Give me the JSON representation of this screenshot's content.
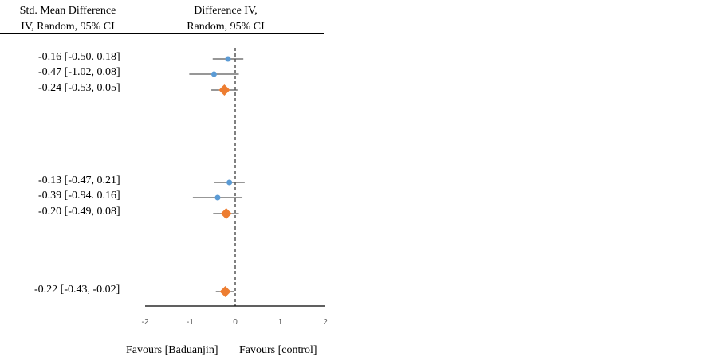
{
  "headers": {
    "left_line1": "Std. Mean Difference",
    "left_line2": "IV, Random, 95% CI",
    "right_line1": "Difference IV,",
    "right_line2": "Random, 95% CI"
  },
  "footer": {
    "favours_left": "Favours [Baduanjin]",
    "favours_right": "Favours [control]"
  },
  "colors": {
    "study_point": "#5b9bd5",
    "summary_diamond": "#ed7d31",
    "whisker": "#595959",
    "axis": "#000000"
  },
  "chart_data": {
    "type": "forest",
    "xlim": [
      -2,
      2
    ],
    "x_ticks": [
      "-2",
      "-1",
      "0",
      "1",
      "2"
    ],
    "x_tick_values": [
      -2,
      -1,
      0,
      1,
      2
    ],
    "reference_line": 0,
    "rows": [
      {
        "label": "-0.16 [-0.50. 0.18]",
        "est": -0.16,
        "lo": -0.5,
        "hi": 0.18,
        "kind": "study"
      },
      {
        "label": "-0.47 [-1.02, 0.08]",
        "est": -0.47,
        "lo": -1.02,
        "hi": 0.08,
        "kind": "study"
      },
      {
        "label": "-0.24 [-0.53, 0.05]",
        "est": -0.24,
        "lo": -0.53,
        "hi": 0.05,
        "kind": "summary"
      },
      {
        "label": "-0.13 [-0.47, 0.21]",
        "est": -0.13,
        "lo": -0.47,
        "hi": 0.21,
        "kind": "study"
      },
      {
        "label": "-0.39 [-0.94. 0.16]",
        "est": -0.39,
        "lo": -0.94,
        "hi": 0.16,
        "kind": "study"
      },
      {
        "label": "-0.20 [-0.49, 0.08]",
        "est": -0.2,
        "lo": -0.49,
        "hi": 0.08,
        "kind": "summary"
      },
      {
        "label": "-0.22 [-0.43, -0.02]",
        "est": -0.22,
        "lo": -0.43,
        "hi": -0.02,
        "kind": "summary"
      }
    ]
  }
}
